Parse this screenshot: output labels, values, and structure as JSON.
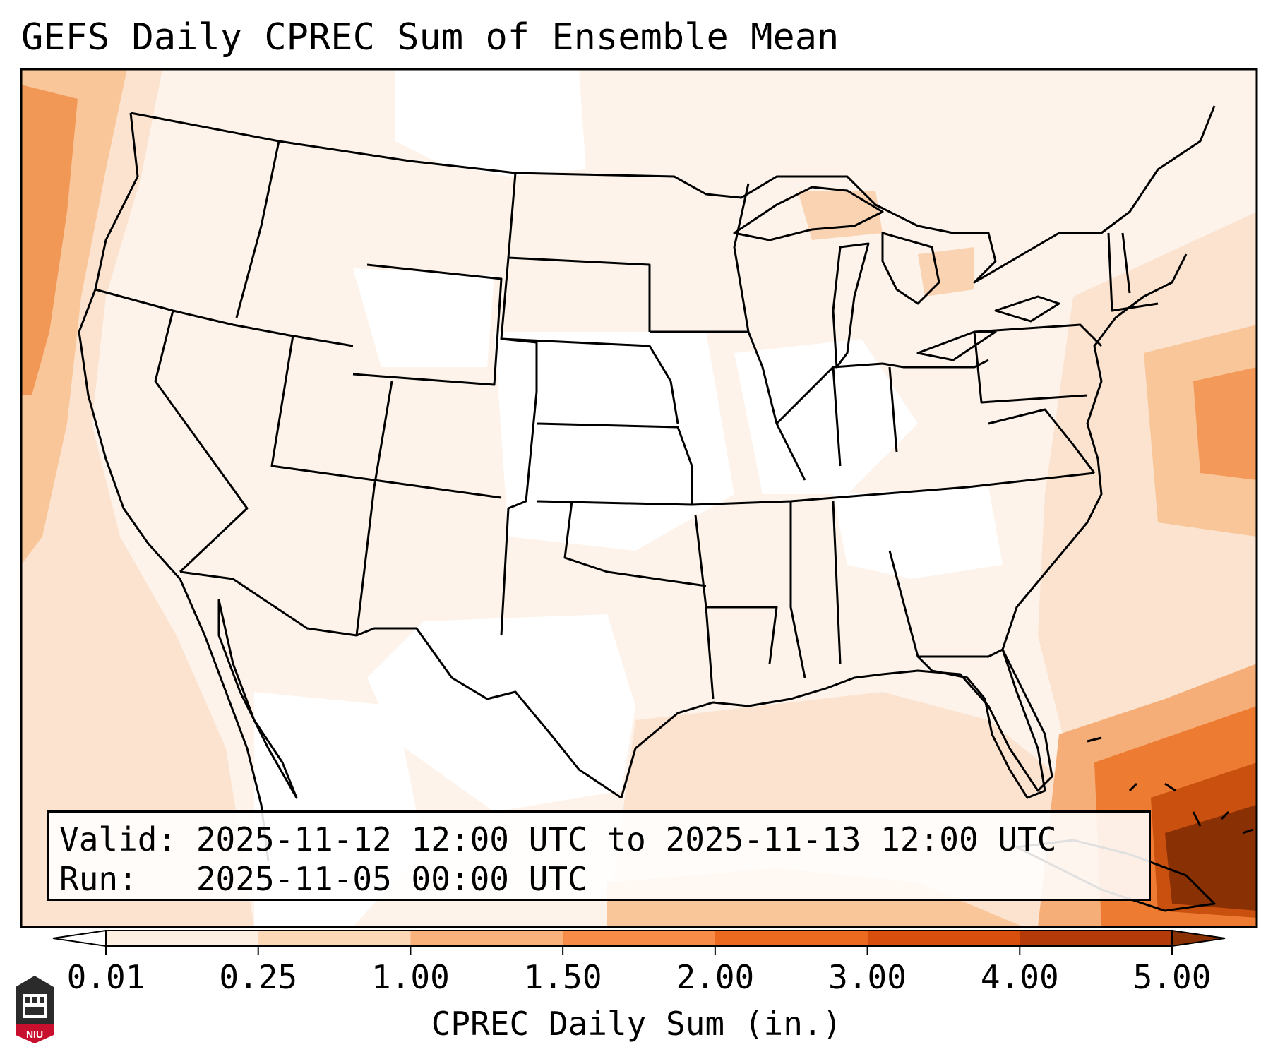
{
  "title": "GEFS Daily CPREC Sum of Ensemble Mean",
  "info": {
    "valid_line": "Valid: 2025-11-12 12:00 UTC to 2025-11-13 12:00 UTC",
    "run_line": "Run:   2025-11-05 00:00 UTC"
  },
  "colorbar": {
    "label": "CPREC Daily Sum (in.)",
    "ticks": [
      "0.01",
      "0.25",
      "1.00",
      "1.50",
      "2.00",
      "3.00",
      "4.00",
      "5.00"
    ],
    "bin_colors": [
      "#fdefe2",
      "#fcd8b7",
      "#f9b27c",
      "#f68c47",
      "#ec6a1f",
      "#d84e0d",
      "#b53a09"
    ],
    "under_color": "#ffffff",
    "over_color": "#8a3005"
  },
  "logo": {
    "text": "NIU",
    "accent": "#c8102e"
  },
  "map": {
    "projection": "Lambert Conformal — Continental US",
    "feature_names": [
      "state-boundaries",
      "coastlines",
      "country-borders",
      "great-lakes"
    ]
  },
  "colors": {
    "lightest": "#fdf2e8",
    "light": "#fbe4d0",
    "medium": "#f9c79c",
    "orange": "#f39a5a",
    "dark": "#e5671f",
    "darkest": "#8a3005"
  }
}
